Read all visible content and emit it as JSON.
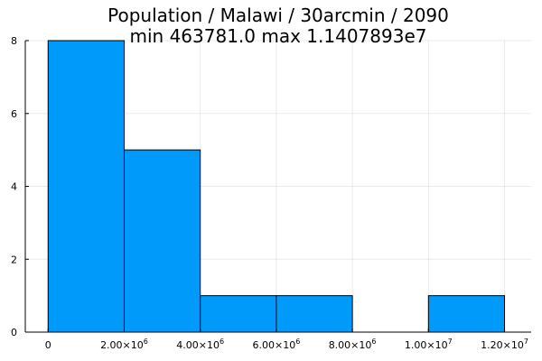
{
  "chart_data": {
    "type": "histogram",
    "title_line1": "Population / Malawi / 30arcmin / 2090",
    "title_line2": "min 463781.0  max 1.1407893e7",
    "xlabel": "",
    "ylabel": "",
    "xlim": [
      -600000,
      12700000
    ],
    "ylim": [
      0,
      8
    ],
    "bins": [
      {
        "x0": 0,
        "x1": 2000000,
        "count": 8
      },
      {
        "x0": 2000000,
        "x1": 4000000,
        "count": 5
      },
      {
        "x0": 4000000,
        "x1": 6000000,
        "count": 1
      },
      {
        "x0": 6000000,
        "x1": 8000000,
        "count": 1
      },
      {
        "x0": 8000000,
        "x1": 10000000,
        "count": 0
      },
      {
        "x0": 10000000,
        "x1": 12000000,
        "count": 1
      }
    ],
    "x_ticks": [
      {
        "value": 0,
        "label": "0",
        "exp": ""
      },
      {
        "value": 2000000,
        "label": "2.00×10",
        "exp": "6"
      },
      {
        "value": 4000000,
        "label": "4.00×10",
        "exp": "6"
      },
      {
        "value": 6000000,
        "label": "6.00×10",
        "exp": "6"
      },
      {
        "value": 8000000,
        "label": "8.00×10",
        "exp": "6"
      },
      {
        "value": 10000000,
        "label": "1.00×10",
        "exp": "7"
      },
      {
        "value": 12000000,
        "label": "1.20×10",
        "exp": "7"
      }
    ],
    "y_ticks": [
      {
        "value": 0,
        "label": "0"
      },
      {
        "value": 2,
        "label": "2"
      },
      {
        "value": 4,
        "label": "4"
      },
      {
        "value": 6,
        "label": "6"
      },
      {
        "value": 8,
        "label": "8"
      }
    ],
    "grid": true,
    "legend": "none",
    "bar_color": "#009AFA",
    "bar_edge_color": "#000000"
  }
}
